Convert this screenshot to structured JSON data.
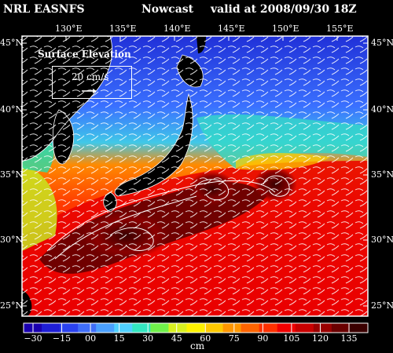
{
  "header": {
    "model": "NRL EASNFS",
    "product": "Nowcast",
    "valid": "valid at 2008/09/30 18Z"
  },
  "map": {
    "variable": "Surface Elevation",
    "vector_scale": "20 cm/s",
    "lon_labels": [
      "130°E",
      "135°E",
      "140°E",
      "145°E",
      "150°E",
      "155°E"
    ],
    "lat_labels_left": [
      "45°N",
      "40°N",
      "35°N",
      "30°N",
      "25°N"
    ],
    "lat_labels_right": [
      "45°N",
      "40°N",
      "35°N",
      "30°N",
      "25°N"
    ],
    "colors": {
      "land": "#000000",
      "coast": "#ffffff",
      "vectors": "#ffffff"
    }
  },
  "colorbar": {
    "ticks": [
      "−30",
      "−15",
      "00",
      "15",
      "30",
      "45",
      "60",
      "75",
      "90",
      "105",
      "120",
      "135"
    ],
    "unit": "cm",
    "colors": [
      "#1a00b0",
      "#1f1fd6",
      "#2a42ee",
      "#3f6ef8",
      "#4aa0ff",
      "#4fd0ff",
      "#33e6c0",
      "#6ff04a",
      "#d8f020",
      "#fff200",
      "#ffc800",
      "#ff9600",
      "#ff6400",
      "#ff3000",
      "#f00000",
      "#c80000",
      "#9a0000",
      "#6a0000",
      "#3a0000"
    ]
  }
}
